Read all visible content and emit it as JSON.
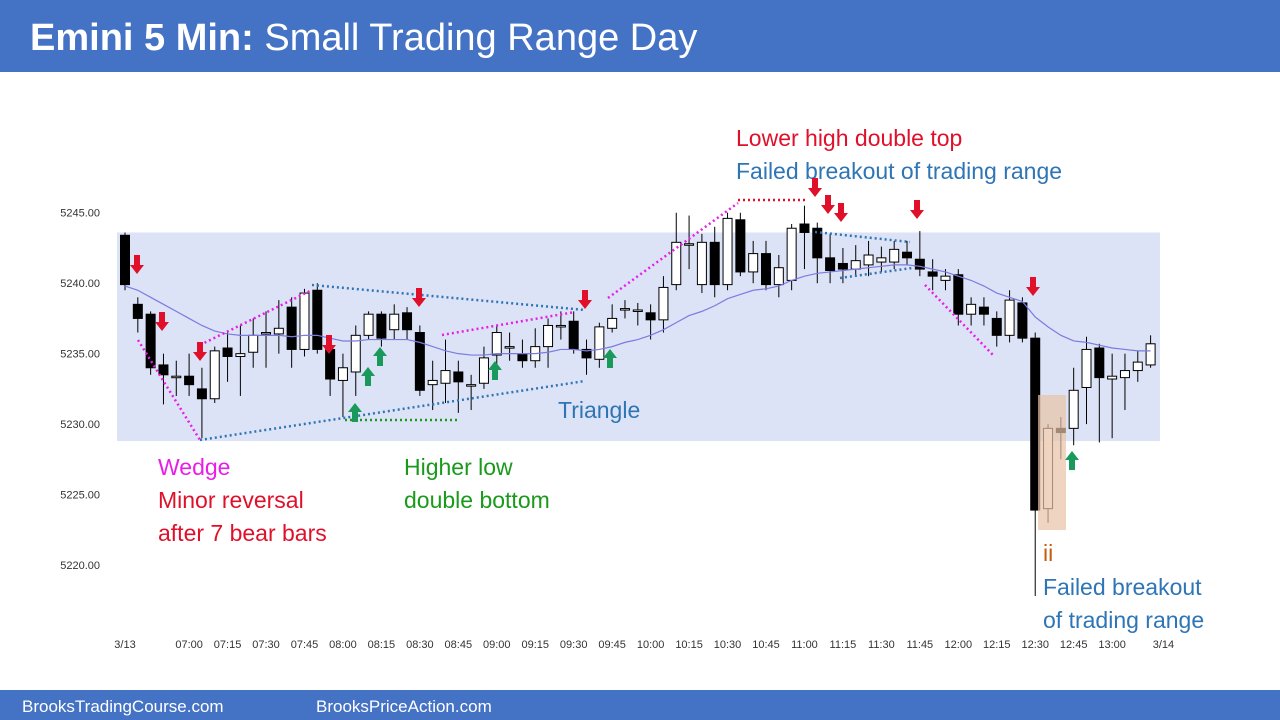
{
  "header": {
    "title_lead": "Emini 5 Min:",
    "title_rest": "Small Trading Range Day"
  },
  "chart_data": {
    "type": "candlestick",
    "categories": [
      "3/13",
      null,
      null,
      null,
      null,
      "07:00",
      null,
      null,
      "07:15",
      null,
      null,
      "07:30",
      null,
      null,
      "07:45",
      null,
      null,
      "08:00",
      null,
      null,
      "08:15",
      null,
      null,
      "08:30",
      null,
      null,
      "08:45",
      null,
      null,
      "09:00",
      null,
      null,
      "09:15",
      null,
      null,
      "09:30",
      null,
      null,
      "09:45",
      null,
      null,
      "10:00",
      null,
      null,
      "10:15",
      null,
      null,
      "10:30",
      null,
      null,
      "10:45",
      null,
      null,
      "11:00",
      null,
      null,
      "11:15",
      null,
      null,
      "11:30",
      null,
      null,
      "11:45",
      null,
      null,
      "12:00",
      null,
      null,
      "12:15",
      null,
      null,
      "12:30",
      null,
      null,
      "12:45",
      null,
      null,
      "13:00",
      null,
      null,
      null,
      "3/14"
    ],
    "open": [
      5243.4,
      5238.5,
      5237.8,
      5234.2,
      5233.4,
      5233.4,
      5232.5,
      5231.8,
      5235.4,
      5234.8,
      5235.1,
      5236.5,
      5236.4,
      5238.3,
      5235.3,
      5239.5,
      5235.3,
      5233.1,
      5233.7,
      5236.3,
      5237.8,
      5236.7,
      5237.9,
      5236.5,
      5232.8,
      5232.9,
      5233.7,
      5232.8,
      5232.9,
      5234.9,
      5235.5,
      5235,
      5234.5,
      5235.5,
      5237,
      5237.3,
      5235.3,
      5234.6,
      5236.8,
      5238.2,
      5238.1,
      5237.9,
      5237.4,
      5239.9,
      5242.8,
      5239.9,
      5242.9,
      5239.9,
      5244.5,
      5240.8,
      5242.1,
      5239.9,
      5240.2,
      5244.2,
      5243.9,
      5241.8,
      5241.4,
      5241,
      5241.3,
      5241.5,
      5241.5,
      5242.2,
      5241.7,
      5240.8,
      5240.2,
      5240.6,
      5237.8,
      5238.3,
      5237.5,
      5236.3,
      5238.6,
      5236.1,
      5224,
      5229.7,
      5229.7,
      5232.6,
      5235.4,
      5233.2,
      5233.3,
      5233.8,
      5234.2,
      null
    ],
    "high": [
      5243.6,
      5239,
      5238,
      5235,
      5234.5,
      5235,
      5234,
      5235.5,
      5236.5,
      5237,
      5237.5,
      5238,
      5238.8,
      5239,
      5239.6,
      5240,
      5236,
      5235,
      5237,
      5238,
      5238,
      5238.5,
      5238.3,
      5237,
      5234.5,
      5236,
      5234.5,
      5233.5,
      5235.5,
      5237,
      5236.5,
      5236,
      5236.8,
      5237.5,
      5238,
      5238,
      5236,
      5237.2,
      5238.5,
      5238.8,
      5238.6,
      5238.5,
      5240.5,
      5245,
      5244.8,
      5243.5,
      5244,
      5245,
      5245,
      5243,
      5243,
      5242,
      5244.2,
      5245.5,
      5244.3,
      5243.5,
      5242.5,
      5242.7,
      5243,
      5242.6,
      5243,
      5243,
      5243.7,
      5241.7,
      5241,
      5241,
      5239,
      5239,
      5238,
      5239.5,
      5239,
      5236.5,
      5230,
      5230.5,
      5234,
      5236.2,
      5235.7,
      5235,
      5235,
      5235.2,
      5236.3,
      null
    ],
    "low": [
      5239.5,
      5236.5,
      5233.5,
      5231.4,
      5232,
      5232,
      5229,
      5231.5,
      5233,
      5232,
      5234,
      5234,
      5235,
      5234,
      5234.8,
      5235,
      5232,
      5230.5,
      5232,
      5236,
      5235.5,
      5236,
      5236,
      5232,
      5231,
      5231.5,
      5230.8,
      5231,
      5232.5,
      5233.5,
      5234.5,
      5234,
      5234,
      5234,
      5236,
      5235,
      5233.5,
      5234,
      5236.5,
      5237.5,
      5237,
      5236,
      5236.5,
      5239.5,
      5241,
      5239.3,
      5239,
      5239.5,
      5240.5,
      5240,
      5239.5,
      5239,
      5239.5,
      5241,
      5240,
      5240,
      5240,
      5240.5,
      5240.5,
      5240.8,
      5241,
      5241.3,
      5240.5,
      5239.5,
      5239.5,
      5237,
      5237,
      5237,
      5235.5,
      5235.8,
      5235.8,
      5217.8,
      5223,
      5227.5,
      5228.5,
      5230,
      5228.7,
      5229,
      5231,
      5233,
      5234,
      null
    ],
    "close": [
      5239.9,
      5237.5,
      5234,
      5233.5,
      5233.4,
      5232.8,
      5231.8,
      5235.2,
      5234.8,
      5235,
      5236.3,
      5236.5,
      5236.8,
      5235.3,
      5239.3,
      5235.3,
      5233.2,
      5234,
      5236.3,
      5237.8,
      5236.1,
      5237.8,
      5236.7,
      5232.4,
      5233.1,
      5233.8,
      5233,
      5232.8,
      5234.7,
      5236.5,
      5235.5,
      5234.5,
      5235.5,
      5237,
      5237,
      5235.3,
      5234.7,
      5236.9,
      5237.5,
      5238.2,
      5238.1,
      5237.4,
      5239.7,
      5242.9,
      5242.8,
      5242.9,
      5239.9,
      5244.6,
      5240.8,
      5242.1,
      5239.9,
      5241.1,
      5243.9,
      5243.6,
      5241.8,
      5240.9,
      5241,
      5241.6,
      5242,
      5241.8,
      5242.4,
      5241.8,
      5241,
      5240.5,
      5240.5,
      5237.8,
      5238.5,
      5237.8,
      5236.3,
      5238.8,
      5236.1,
      5223.9,
      5229.7,
      5229.4,
      5232.4,
      5235.3,
      5233.3,
      5233.4,
      5233.8,
      5234.4,
      5235.7,
      null
    ],
    "moving_average": [
      5239.8,
      5239.5,
      5239,
      5238.5,
      5238,
      5237.5,
      5237,
      5236.6,
      5236.4,
      5236.3,
      5236.3,
      5236.3,
      5236.3,
      5236.2,
      5236.3,
      5236.3,
      5236.1,
      5235.9,
      5235.9,
      5236,
      5236,
      5236,
      5236,
      5235.8,
      5235.5,
      5235.2,
      5235,
      5234.9,
      5234.9,
      5235,
      5235,
      5235,
      5235,
      5235.1,
      5235.3,
      5235.3,
      5235.2,
      5235.3,
      5235.5,
      5235.8,
      5236,
      5236.3,
      5236.7,
      5237.2,
      5237.7,
      5238,
      5238.4,
      5238.9,
      5239.2,
      5239.5,
      5239.6,
      5239.8,
      5240.2,
      5240.5,
      5240.7,
      5240.8,
      5240.9,
      5241,
      5241.1,
      5241.2,
      5241.3,
      5241.3,
      5241.2,
      5241,
      5240.8,
      5240.5,
      5240.2,
      5239.8,
      5239.3,
      5239,
      5238.7,
      5237.6,
      5236.9,
      5236.3,
      5235.9,
      5235.8,
      5235.6,
      5235.4,
      5235.3,
      5235.2,
      5235.2,
      null
    ],
    "range_band": [
      5228.8,
      5243.6
    ],
    "ylim": [
      5216.1,
      5253.0
    ],
    "yticks": [
      {
        "value": 5220,
        "label": "5220.00"
      },
      {
        "value": 5225,
        "label": "5225.00"
      },
      {
        "value": 5230,
        "label": "5230.00"
      },
      {
        "value": 5235,
        "label": "5235.00"
      },
      {
        "value": 5240,
        "label": "5240.00"
      },
      {
        "value": 5245,
        "label": "5245.00"
      }
    ],
    "annotations": [
      "Lower high double top",
      "Failed breakout of trading range",
      "Wedge",
      "Minor reversal",
      "after 7 bear bars",
      "Higher low",
      "double bottom",
      "Triangle",
      "ii",
      "Failed breakout",
      "of trading range"
    ]
  },
  "footer": {
    "left": "BrooksTradingCourse.com",
    "right": "BrooksPriceAction.com"
  }
}
